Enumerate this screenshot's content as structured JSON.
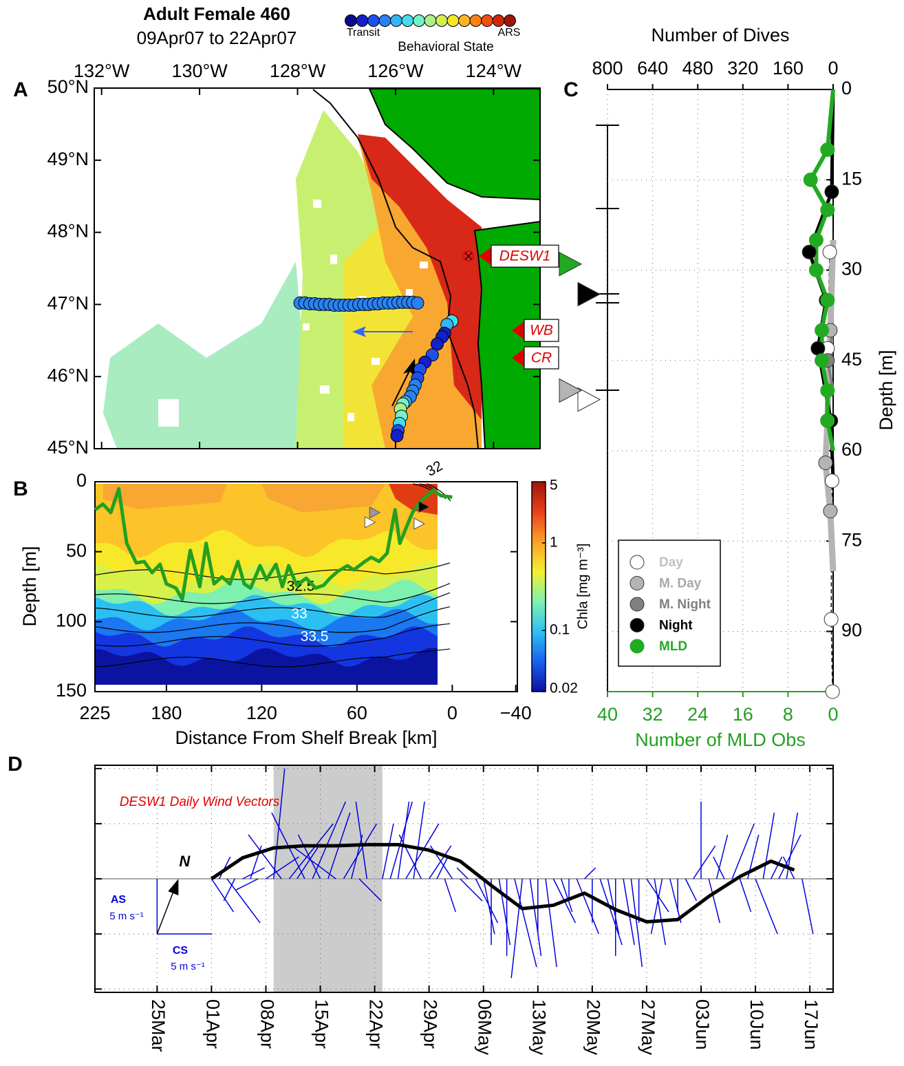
{
  "header": {
    "title": "Adult Female 460",
    "subtitle": "09Apr07 to 22Apr07",
    "state_label": "Behavioral State",
    "state_low": "Transit",
    "state_high": "ARS",
    "state_colors": [
      "#0a0a8c",
      "#1420c8",
      "#1e50f0",
      "#2882f5",
      "#32b4f5",
      "#46dcf0",
      "#78f0c8",
      "#aaf08c",
      "#d2f050",
      "#f5e628",
      "#fab41e",
      "#fa8214",
      "#f0500f",
      "#d2280a",
      "#a0140a"
    ]
  },
  "chart_data": [
    {
      "type": "map",
      "panel": "A",
      "land_color": "#00aa00",
      "xlim": [
        -132.15,
        -123.05
      ],
      "ylim": [
        45,
        50
      ],
      "xticks": [
        {
          "value": -132,
          "label": "132°W"
        },
        {
          "value": -130,
          "label": "130°W"
        },
        {
          "value": -128,
          "label": "128°W"
        },
        {
          "value": -126,
          "label": "126°W"
        },
        {
          "value": -124,
          "label": "124°W"
        }
      ],
      "yticks": [
        {
          "value": 45,
          "label": "45°N"
        },
        {
          "value": 46,
          "label": "46°N"
        },
        {
          "value": 47,
          "label": "47°N"
        },
        {
          "value": 48,
          "label": "48°N"
        },
        {
          "value": 49,
          "label": "49°N"
        },
        {
          "value": 50,
          "label": "50°N"
        }
      ],
      "track": {
        "lon": [
          -127.95,
          -127.85,
          -127.75,
          -127.65,
          -127.55,
          -127.45,
          -127.35,
          -127.25,
          -127.15,
          -127.05,
          -126.95,
          -126.85,
          -126.75,
          -126.65,
          -126.55,
          -126.45,
          -126.35,
          -126.25,
          -126.15,
          -126.05,
          -125.95,
          -125.85,
          -125.75,
          -125.65,
          -125.55,
          -124.85,
          -124.95,
          -125.0,
          -125.05,
          -125.15,
          -125.25,
          -125.4,
          -125.5,
          -125.55,
          -125.6,
          -125.65,
          -125.7,
          -125.8,
          -125.85,
          -125.9,
          -125.88,
          -125.92,
          -125.95,
          -125.97
        ],
        "lat": [
          47.02,
          47.02,
          47.01,
          47.01,
          47.0,
          47.0,
          47.0,
          46.99,
          46.99,
          46.99,
          46.99,
          46.99,
          47.0,
          47.0,
          47.0,
          47.01,
          47.01,
          47.02,
          47.02,
          47.02,
          47.03,
          47.03,
          47.03,
          47.03,
          47.02,
          46.77,
          46.72,
          46.6,
          46.55,
          46.45,
          46.3,
          46.2,
          46.1,
          45.98,
          45.88,
          45.8,
          45.72,
          45.65,
          45.62,
          45.55,
          45.45,
          45.35,
          45.25,
          45.18
        ],
        "state": [
          0.2,
          0.2,
          0.2,
          0.2,
          0.2,
          0.2,
          0.2,
          0.2,
          0.2,
          0.2,
          0.2,
          0.2,
          0.2,
          0.2,
          0.2,
          0.2,
          0.2,
          0.2,
          0.2,
          0.2,
          0.2,
          0.2,
          0.2,
          0.2,
          0.2,
          0.38,
          0.32,
          0.05,
          0.08,
          0.1,
          0.12,
          0.1,
          0.15,
          0.15,
          0.18,
          0.2,
          0.22,
          0.3,
          0.45,
          0.5,
          0.45,
          0.35,
          0.15,
          0.05
        ]
      },
      "stations": [
        {
          "label": "DESW1",
          "lon": -124.51,
          "lat": 47.67
        },
        {
          "label": "WB",
          "lat": 46.64
        },
        {
          "label": "CR",
          "lat": 46.26
        }
      ]
    },
    {
      "type": "section",
      "panel": "B",
      "xlabel": "Distance From Shelf Break [km]",
      "ylabel": "Depth [m]",
      "xlim": [
        225,
        -41
      ],
      "ylim": [
        0,
        150
      ],
      "y_inverted": true,
      "xticks": [
        225,
        180,
        120,
        60,
        0,
        {
          "value": -40,
          "label": "−40"
        }
      ],
      "yticks": [
        0,
        50,
        100,
        150
      ],
      "mld": {
        "color": "#22a022",
        "x": [
          225,
          220,
          215,
          210,
          205,
          199,
          194,
          189,
          184,
          180,
          174,
          170,
          165,
          159,
          155,
          150,
          145,
          140,
          135,
          131,
          127,
          121,
          117,
          111,
          107,
          103,
          98,
          92,
          86,
          81,
          77,
          72,
          66,
          62,
          55,
          51,
          46,
          41,
          36,
          33,
          28,
          25,
          20,
          16,
          12,
          7,
          0
        ],
        "values": [
          20,
          16,
          22,
          5,
          44,
          58,
          57,
          65,
          59,
          73,
          76,
          84,
          49,
          75,
          44,
          73,
          68,
          73,
          57,
          73,
          76,
          60,
          70,
          59,
          75,
          60,
          74,
          69,
          76,
          74,
          69,
          64,
          60,
          63,
          57,
          54,
          57,
          51,
          20,
          44,
          30,
          22,
          14,
          10,
          6,
          10,
          11
        ]
      },
      "markers": [
        {
          "x": 18,
          "depth": 18,
          "color": "#000000"
        },
        {
          "x": 21,
          "depth": 30,
          "color": "#ffffff"
        },
        {
          "x": 49,
          "depth": 22,
          "color": "#999999"
        },
        {
          "x": 52,
          "depth": 29,
          "color": "#ffffff"
        }
      ],
      "colorbar": {
        "label": "Chla [mg m⁻³]",
        "scale": "log",
        "lim": [
          0.02,
          5
        ],
        "ticks": [
          5,
          1,
          0.1,
          0.02
        ]
      },
      "contour_labels": [
        "32",
        "32.5",
        "33",
        "33.5"
      ]
    },
    {
      "type": "profile",
      "panel": "C",
      "grid": true,
      "ylabel": "Depth [m]",
      "ylim": [
        0,
        100
      ],
      "yticks": [
        0,
        15,
        30,
        45,
        60,
        75,
        90
      ],
      "xlabel_top": "Number of Dives",
      "xlim_top": [
        800,
        0
      ],
      "xticks_top": [
        800,
        640,
        480,
        320,
        160,
        0
      ],
      "xlabel": "Number of MLD Obs",
      "xlim": [
        40,
        0
      ],
      "xticks": [
        40,
        32,
        24,
        16,
        8,
        0
      ],
      "axis_color": "#22a022",
      "series": [
        {
          "name": "Day",
          "color": "#ffffff",
          "text_color": "#c0c0c0",
          "axis": "top",
          "depth": [
            27,
            43,
            65,
            88,
            100
          ],
          "values": [
            12,
            20,
            4,
            7,
            2
          ],
          "mean_depth": 51.5
        },
        {
          "name": "M. Day",
          "color": "#b4b4b4",
          "text_color": "#a8a8a8",
          "axis": "top",
          "depth": [
            25,
            40,
            55,
            62,
            70,
            80
          ],
          "values": [
            0,
            10,
            20,
            27,
            10,
            0
          ],
          "mean_depth": 50
        },
        {
          "name": "M. Night",
          "color": "#808080",
          "text_color": "#808080",
          "axis": "top",
          "depth": [
            40,
            45,
            50
          ],
          "values": [
            0,
            20,
            0
          ]
        },
        {
          "name": "Night",
          "color": "#000000",
          "text_color": "#000000",
          "axis": "top",
          "depth": [
            0,
            17,
            27,
            35,
            43,
            55,
            65
          ],
          "values": [
            0,
            5,
            85,
            25,
            54,
            8,
            0
          ],
          "mean_depth": 34
        },
        {
          "name": "MLD",
          "color": "#22aa22",
          "text_color": "#22aa22",
          "axis": "bottom",
          "depth": [
            0,
            10,
            15,
            20,
            25,
            30,
            35,
            40,
            45,
            50,
            55,
            60
          ],
          "values": [
            0,
            1,
            4,
            1,
            3,
            3,
            1,
            2,
            2,
            1,
            1,
            0
          ],
          "mean_depth": 29
        }
      ]
    },
    {
      "type": "stick",
      "panel": "D",
      "title": "DESW1 Daily Wind Vectors",
      "color": "#0000dd",
      "grid": true,
      "xlim": [
        "17Mar",
        "20Jun"
      ],
      "xticks": [
        "25Mar",
        "01Apr",
        "08Apr",
        "15Apr",
        "22Apr",
        "29Apr",
        "06May",
        "13May",
        "20May",
        "27May",
        "03Jun",
        "10Jun",
        "17Jun"
      ],
      "ylim": [
        -10.3,
        10.3
      ],
      "yticks": [
        -10,
        -5,
        0,
        5,
        10
      ],
      "highlight": [
        "09Apr",
        "22Apr"
      ],
      "x": [
        "01Apr",
        "02Apr",
        "03Apr",
        "04Apr",
        "05Apr",
        "06Apr",
        "07Apr",
        "08Apr",
        "09Apr",
        "10Apr",
        "11Apr",
        "12Apr",
        "13Apr",
        "14Apr",
        "15Apr",
        "16Apr",
        "17Apr",
        "18Apr",
        "19Apr",
        "20Apr",
        "21Apr",
        "22Apr",
        "23Apr",
        "24Apr",
        "25Apr",
        "26Apr",
        "27Apr",
        "28Apr",
        "29Apr",
        "30Apr",
        "01May",
        "02May",
        "03May",
        "04May",
        "05May",
        "06May",
        "07May",
        "08May",
        "09May",
        "10May",
        "11May",
        "12May",
        "13May",
        "14May",
        "15May",
        "16May",
        "17May",
        "18May",
        "19May",
        "20May",
        "21May",
        "22May",
        "23May",
        "24May",
        "25May",
        "26May",
        "27May",
        "28May",
        "29May",
        "30May",
        "31May",
        "01Jun",
        "02Jun",
        "03Jun",
        "04Jun",
        "05Jun",
        "06Jun",
        "07Jun",
        "08Jun",
        "09Jun",
        "10Jun",
        "11Jun",
        "12Jun",
        "13Jun",
        "14Jun",
        "15Jun",
        "16Jun"
      ],
      "u": [
        2,
        1,
        3,
        -1,
        2,
        1,
        -2,
        3,
        1,
        -3,
        4,
        2,
        -3,
        3,
        -2,
        2,
        -4,
        3,
        1,
        2,
        -1,
        0,
        1,
        2,
        1,
        3,
        1,
        -2,
        2,
        1,
        1,
        -2,
        2,
        -1,
        2,
        1,
        0,
        1,
        0,
        2,
        -1,
        1,
        0,
        1,
        2,
        1,
        0,
        2,
        1,
        0,
        2,
        1,
        0,
        1,
        1,
        0,
        2,
        1,
        -1,
        1,
        0,
        1,
        2,
        0,
        1,
        1,
        -1,
        2,
        1,
        1,
        2,
        1,
        1,
        2,
        1,
        -1,
        1
      ],
      "v": [
        -3,
        2,
        -4,
        -2,
        1,
        3,
        -1,
        2,
        10,
        4,
        5,
        3,
        6,
        7,
        4,
        6,
        3,
        5,
        4,
        -2,
        7,
        0,
        5,
        7,
        7,
        5,
        7,
        4,
        3,
        2,
        -3,
        3,
        -2,
        1,
        -4,
        -5,
        -6,
        -6,
        -7,
        -8,
        -9,
        -7,
        -5,
        -8,
        -4,
        -3,
        -2,
        -5,
        1,
        -4,
        -6,
        -5,
        -7,
        -6,
        -8,
        -4,
        -3,
        -6,
        -5,
        -4,
        -3,
        -2,
        3,
        7,
        -4,
        4,
        2,
        5,
        -3,
        4,
        -5,
        6,
        2,
        4,
        6,
        2,
        -5
      ],
      "smooth_x": [
        "01Apr",
        "05Apr",
        "09Apr",
        "13Apr",
        "17Apr",
        "21Apr",
        "25Apr",
        "29Apr",
        "03May",
        "07May",
        "11May",
        "15May",
        "19May",
        "23May",
        "27May",
        "31May",
        "04Jun",
        "08Jun",
        "12Jun",
        "15Jun"
      ],
      "smooth": [
        0,
        1.9,
        2.8,
        3.0,
        3.0,
        3.1,
        3.1,
        2.6,
        1.6,
        -0.6,
        -2.7,
        -2.4,
        -1.3,
        -2.8,
        -3.9,
        -3.7,
        -1.6,
        0.2,
        1.6,
        0.8
      ],
      "scale": 5,
      "north": "N",
      "along": "AS",
      "along_unit": "5 m s⁻¹",
      "cross": "CS",
      "cross_unit": "5 m s⁻¹"
    }
  ]
}
